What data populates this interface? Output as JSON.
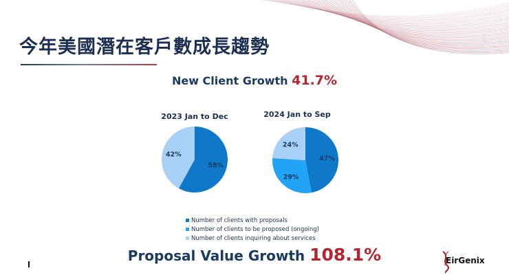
{
  "slide": {
    "title": "今年美國潛在客戶數成長趨勢",
    "headline_top": {
      "label": "New Client Growth ",
      "value": "41.7%"
    },
    "headline_bottom": {
      "label": "Proposal Value Growth ",
      "value": "108.1%"
    },
    "brand": "EirGenix",
    "colors": {
      "title": "#1c2e52",
      "headline": "#1c3b62",
      "accent_red": "#b8242c"
    }
  },
  "chart_data": [
    {
      "type": "pie",
      "title": "2023 Jan to Dec",
      "slices": [
        {
          "category": "Number of clients with proposals",
          "value": 58,
          "label": "58%",
          "color": "#0f78c8"
        },
        {
          "category": "Number of clients inquiring about services",
          "value": 42,
          "label": "42%",
          "color": "#a9d0f7"
        }
      ]
    },
    {
      "type": "pie",
      "title": "2024 Jan to Sep",
      "slices": [
        {
          "category": "Number of clients with proposals",
          "value": 47,
          "label": "47%",
          "color": "#0f78c8"
        },
        {
          "category": "Number of clients to be proposed (ongoing)",
          "value": 29,
          "label": "29%",
          "color": "#22a3f5"
        },
        {
          "category": "Number of clients inquiring about services",
          "value": 24,
          "label": "24%",
          "color": "#a9d0f7"
        }
      ]
    }
  ],
  "legend": {
    "placement": "bottom-center",
    "items": [
      {
        "label": "Number of clients with proposals",
        "color": "#0f78c8"
      },
      {
        "label": "Number of clients to be proposed (ongoing)",
        "color": "#22a3f5"
      },
      {
        "label": "Number of clients inquiring about services",
        "color": "#a9d0f7"
      }
    ]
  }
}
